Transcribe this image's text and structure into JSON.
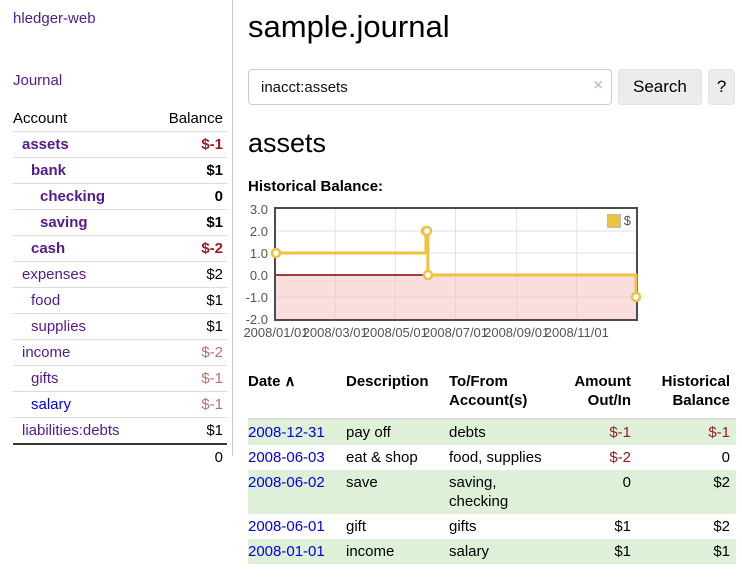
{
  "app": {
    "title": "hledger-web"
  },
  "sidebar": {
    "journal_link": "Journal",
    "accounts": {
      "header": {
        "account": "Account",
        "balance": "Balance"
      },
      "rows": [
        {
          "name": "assets",
          "balance": "$-1"
        },
        {
          "name": "bank",
          "balance": "$1"
        },
        {
          "name": "checking",
          "balance": "0"
        },
        {
          "name": "saving",
          "balance": "$1"
        },
        {
          "name": "cash",
          "balance": "$-2"
        },
        {
          "name": "expenses",
          "balance": "$2"
        },
        {
          "name": "food",
          "balance": "$1"
        },
        {
          "name": "supplies",
          "balance": "$1"
        },
        {
          "name": "income",
          "balance": "$-2"
        },
        {
          "name": "gifts",
          "balance": "$-1"
        },
        {
          "name": "salary",
          "balance": "$-1"
        },
        {
          "name": "liabilities:debts",
          "balance": "$1"
        }
      ],
      "total": "0"
    }
  },
  "main": {
    "title": "sample.journal",
    "search": {
      "value": "inacct:assets",
      "button_label": "Search",
      "help_label": "?"
    },
    "icons": {
      "clear": "×",
      "sort_asc": "∧"
    },
    "account_heading": "assets",
    "chart_title": "Historical Balance:",
    "chart_data": {
      "type": "line",
      "step": true,
      "title": "Historical Balance",
      "legend": "$",
      "series": [
        {
          "name": "$",
          "points": [
            [
              "2008-01-01",
              1
            ],
            [
              "2008-06-01",
              2
            ],
            [
              "2008-06-02",
              2
            ],
            [
              "2008-06-03",
              0
            ],
            [
              "2008-12-31",
              -1
            ]
          ]
        }
      ],
      "x_ticks": [
        "2008/01/01",
        "2008/03/01",
        "2008/05/01",
        "2008/07/01",
        "2008/09/01",
        "2008/11/01"
      ],
      "y_ticks": [
        "3.0",
        "2.0",
        "1.0",
        "0.0",
        "-1.0",
        "-2.0"
      ],
      "ylim": [
        -2,
        3
      ],
      "x_range": [
        "2008-01-01",
        "2008-12-31"
      ],
      "grid": true,
      "legend_position": "top-right",
      "line_color": "#edc240",
      "negative_region_color": "#fadddd",
      "zero_line_color": "#8b0000"
    },
    "register": {
      "headers": {
        "date": "Date",
        "description": "Description",
        "account": "To/From\nAccount(s)",
        "amount": "Amount\nOut/In",
        "balance": "Historical\nBalance"
      },
      "rows": [
        {
          "date": "2008-12-31",
          "description": "pay off",
          "account": "debts",
          "amount": "$-1",
          "balance": "$-1"
        },
        {
          "date": "2008-06-03",
          "description": "eat & shop",
          "account": "food, supplies",
          "amount": "$-2",
          "balance": "0"
        },
        {
          "date": "2008-06-02",
          "description": "save",
          "account": "saving,\nchecking",
          "amount": "0",
          "balance": "$2"
        },
        {
          "date": "2008-06-01",
          "description": "gift",
          "account": "gifts",
          "amount": "$1",
          "balance": "$2"
        },
        {
          "date": "2008-01-01",
          "description": "income",
          "account": "salary",
          "amount": "$1",
          "balance": "$1"
        }
      ]
    }
  },
  "colors": {
    "link_purple": "#551a8b",
    "link_blue": "#0000dd",
    "negative_strong": "#991b1e",
    "negative_soft": "#bb6f6f",
    "row_stripe_green": "#dff0d8",
    "chart_yellow": "#edc240",
    "chart_pink": "#fadddd",
    "zero_line": "#8b0000",
    "axis_text": "#545454"
  }
}
